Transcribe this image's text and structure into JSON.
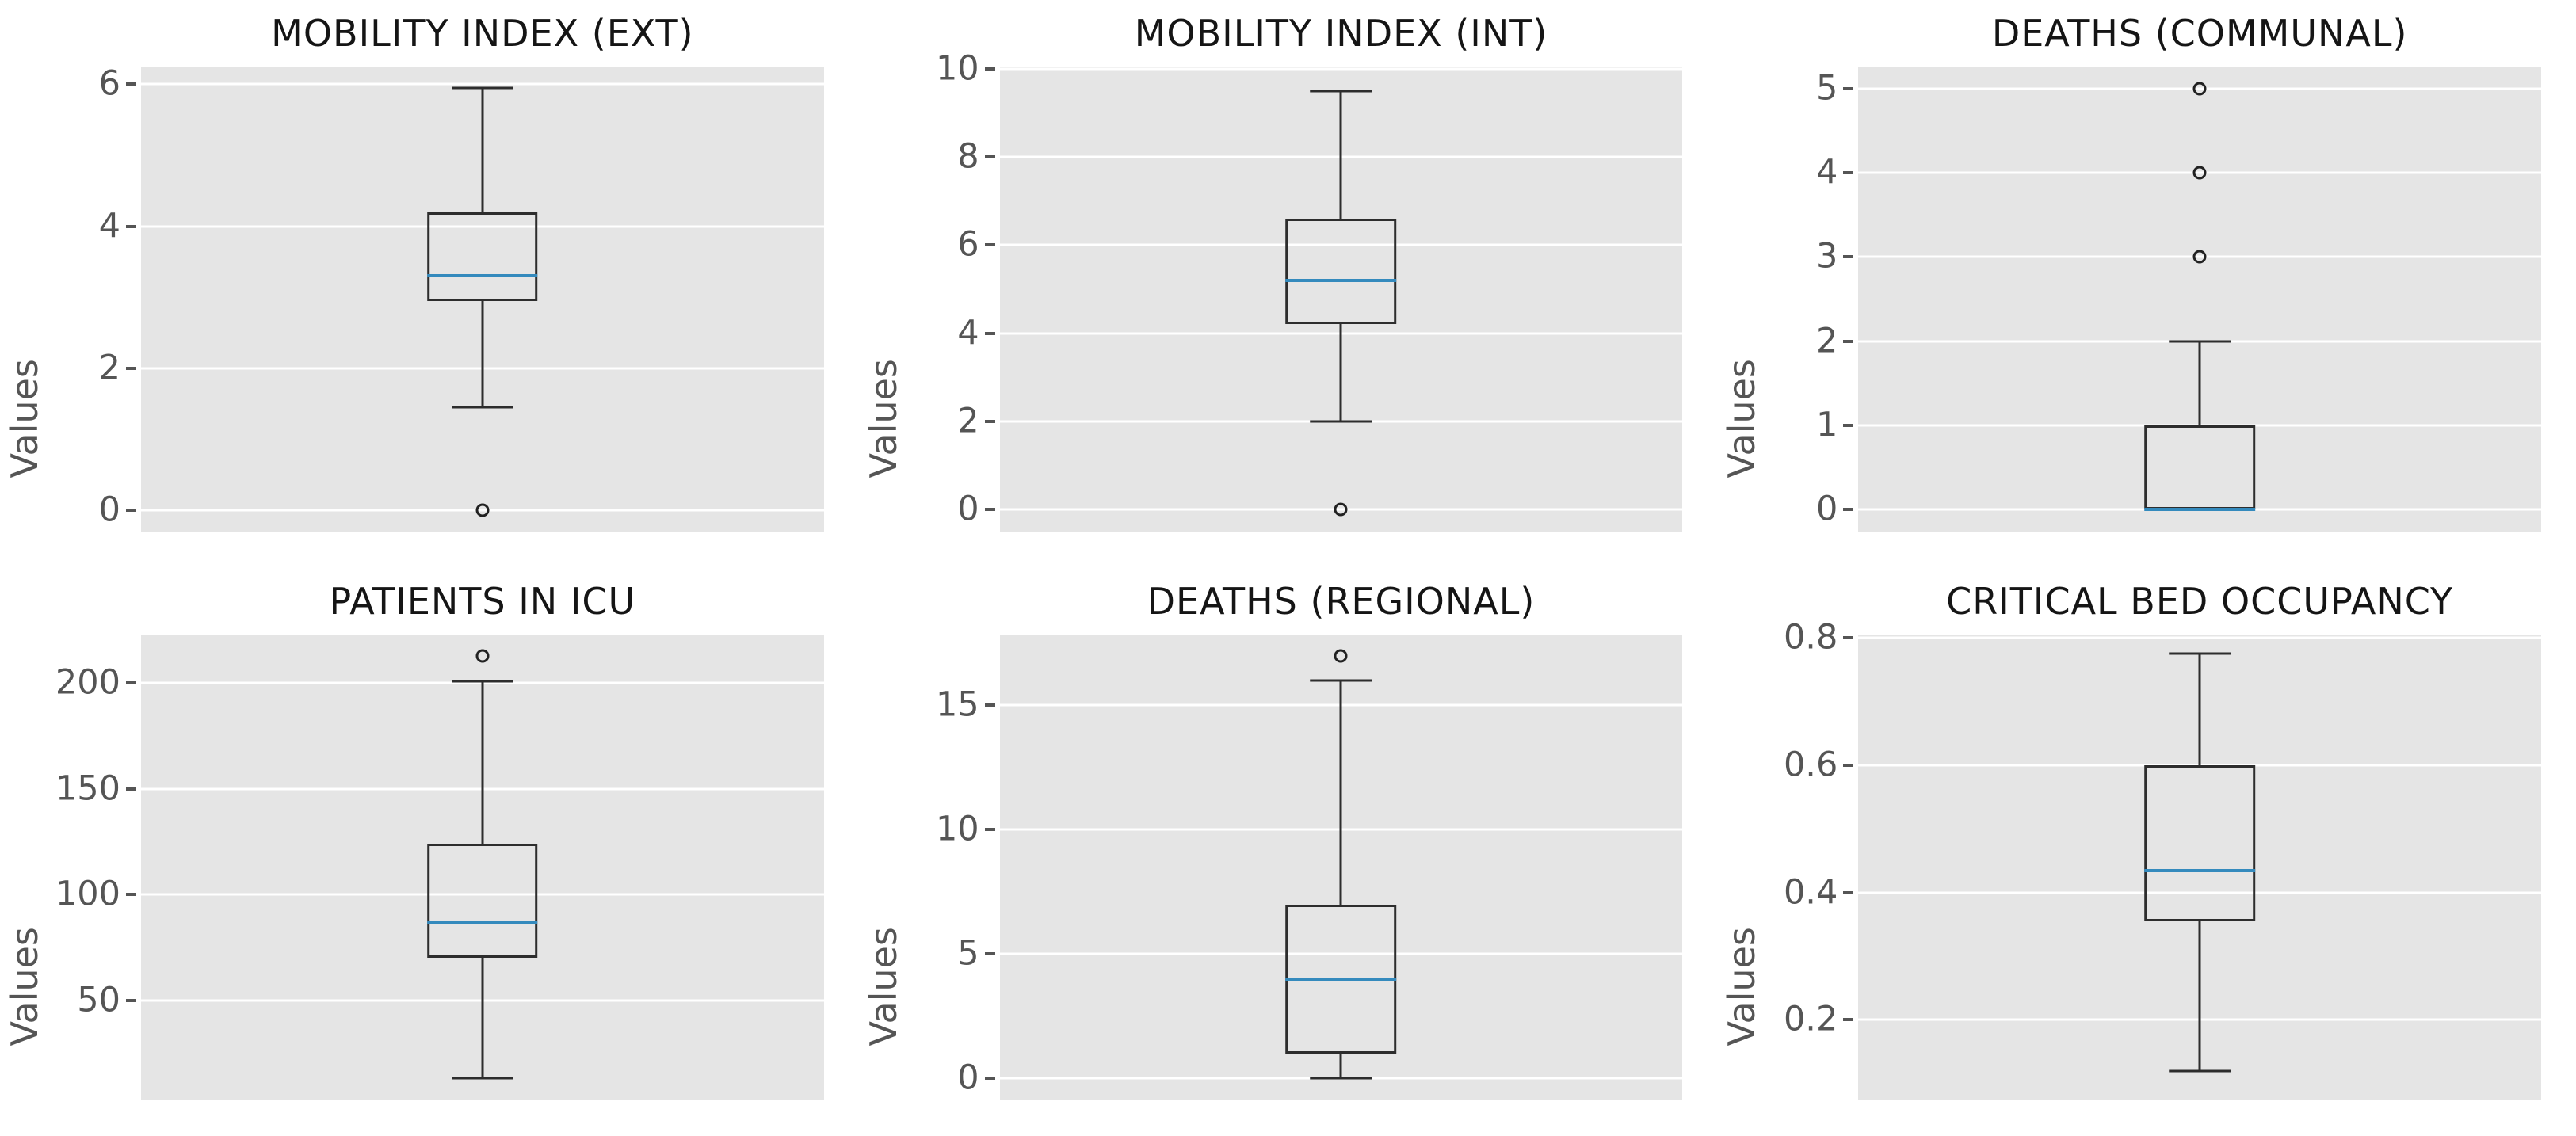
{
  "figure": {
    "background": "#ffffff",
    "axes_background": "#e5e5e5",
    "grid_color": "#ffffff",
    "tick_color": "#555555",
    "title_color": "#151515",
    "box_line_color": "#2d2d2d",
    "median_color": "#348abd",
    "style": "ggplot"
  },
  "chart_data": [
    {
      "type": "box",
      "title": "MOBILITY INDEX (EXT)",
      "ylabel": "Values",
      "ylim": [
        -0.3,
        6.25
      ],
      "yticks": [
        0,
        2,
        4,
        6
      ],
      "ytick_labels": [
        "0",
        "2",
        "4",
        "6"
      ],
      "whisker_low": 1.45,
      "q1": 2.95,
      "median": 3.3,
      "q3": 4.2,
      "whisker_high": 5.95,
      "outliers": [
        0
      ]
    },
    {
      "type": "box",
      "title": "MOBILITY INDEX (INT)",
      "ylabel": "Values",
      "ylim": [
        -0.5,
        10.05
      ],
      "yticks": [
        0,
        2,
        4,
        6,
        8,
        10
      ],
      "ytick_labels": [
        "0",
        "2",
        "4",
        "6",
        "8",
        "10"
      ],
      "whisker_low": 2.0,
      "q1": 4.2,
      "median": 5.2,
      "q3": 6.6,
      "whisker_high": 9.5,
      "outliers": [
        0
      ]
    },
    {
      "type": "box",
      "title": "DEATHS (COMMUNAL)",
      "ylabel": "Values",
      "ylim": [
        -0.26,
        5.26
      ],
      "yticks": [
        0,
        1,
        2,
        3,
        4,
        5
      ],
      "ytick_labels": [
        "0",
        "1",
        "2",
        "3",
        "4",
        "5"
      ],
      "whisker_low": 0,
      "q1": 0,
      "median": 0,
      "q3": 1,
      "whisker_high": 2,
      "outliers": [
        3,
        4,
        5
      ]
    },
    {
      "type": "box",
      "title": "PATIENTS IN ICU",
      "ylabel": "Values",
      "ylim": [
        3,
        223
      ],
      "yticks": [
        50,
        100,
        150,
        200
      ],
      "ytick_labels": [
        "50",
        "100",
        "150",
        "200"
      ],
      "whisker_low": 13,
      "q1": 70,
      "median": 87,
      "q3": 124,
      "whisker_high": 201,
      "outliers": [
        213
      ]
    },
    {
      "type": "box",
      "title": "DEATHS (REGIONAL)",
      "ylabel": "Values",
      "ylim": [
        -0.85,
        17.85
      ],
      "yticks": [
        0,
        5,
        10,
        15
      ],
      "ytick_labels": [
        "0",
        "5",
        "10",
        "15"
      ],
      "whisker_low": 0,
      "q1": 1,
      "median": 4,
      "q3": 7,
      "whisker_high": 16,
      "outliers": [
        17
      ]
    },
    {
      "type": "box",
      "title": "CRITICAL BED OCCUPANCY",
      "ylabel": "Values",
      "ylim": [
        0.075,
        0.805
      ],
      "yticks": [
        0.2,
        0.4,
        0.6,
        0.8
      ],
      "ytick_labels": [
        "0.2",
        "0.4",
        "0.6",
        "0.8"
      ],
      "whisker_low": 0.12,
      "q1": 0.355,
      "median": 0.435,
      "q3": 0.6,
      "whisker_high": 0.775,
      "outliers": []
    }
  ]
}
